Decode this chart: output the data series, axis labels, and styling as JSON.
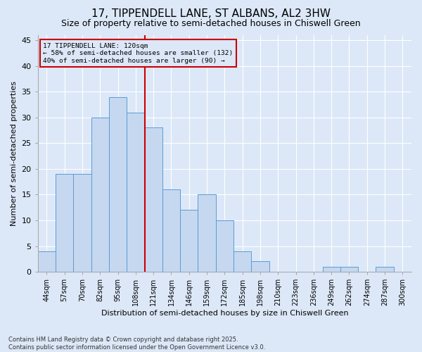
{
  "title": "17, TIPPENDELL LANE, ST ALBANS, AL2 3HW",
  "subtitle": "Size of property relative to semi-detached houses in Chiswell Green",
  "xlabel": "Distribution of semi-detached houses by size in Chiswell Green",
  "ylabel": "Number of semi-detached properties",
  "footnote1": "Contains HM Land Registry data © Crown copyright and database right 2025.",
  "footnote2": "Contains public sector information licensed under the Open Government Licence v3.0.",
  "bin_labels": [
    "44sqm",
    "57sqm",
    "70sqm",
    "82sqm",
    "95sqm",
    "108sqm",
    "121sqm",
    "134sqm",
    "146sqm",
    "159sqm",
    "172sqm",
    "185sqm",
    "198sqm",
    "210sqm",
    "223sqm",
    "236sqm",
    "249sqm",
    "262sqm",
    "274sqm",
    "287sqm",
    "300sqm"
  ],
  "bar_heights": [
    4,
    19,
    19,
    30,
    34,
    31,
    28,
    16,
    12,
    15,
    10,
    4,
    2,
    0,
    0,
    0,
    1,
    1,
    0,
    1,
    0
  ],
  "bar_color": "#c5d8f0",
  "bar_edge_color": "#5b9bd5",
  "vline_color": "#cc0000",
  "vline_index": 6,
  "annotation_text": "17 TIPPENDELL LANE: 120sqm\n← 58% of semi-detached houses are smaller (132)\n40% of semi-detached houses are larger (90) →",
  "annotation_box_color": "#cc0000",
  "ylim": [
    0,
    46
  ],
  "yticks": [
    0,
    5,
    10,
    15,
    20,
    25,
    30,
    35,
    40,
    45
  ],
  "bg_color": "#dce8f8",
  "grid_color": "#ffffff",
  "title_fontsize": 11,
  "subtitle_fontsize": 9,
  "tick_fontsize": 7,
  "axis_label_fontsize": 8,
  "footnote_fontsize": 6
}
